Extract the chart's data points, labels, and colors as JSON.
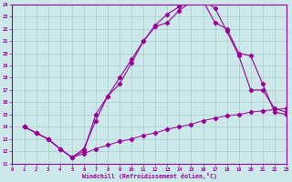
{
  "xlabel": "Windchill (Refroidissement éolien,°C)",
  "bg_color": "#cce8ea",
  "grid_color": "#aacccc",
  "line_color": "#990099",
  "xmin": 0,
  "xmax": 23,
  "ymin": 11,
  "ymax": 24,
  "curve1_x": [
    1,
    2,
    3,
    4,
    5,
    6,
    7,
    8,
    9,
    10,
    11,
    12,
    13,
    14,
    15,
    16,
    17,
    18,
    19,
    20,
    21,
    22,
    23
  ],
  "curve1_y": [
    14,
    13.5,
    13,
    12.2,
    11.5,
    12.2,
    14.5,
    16.5,
    18.0,
    19.5,
    21.0,
    22.2,
    22.5,
    23.5,
    24.2,
    24.3,
    23.7,
    21.8,
    19.8,
    17.0,
    17.0,
    15.5,
    15.2
  ],
  "curve2_x": [
    1,
    2,
    3,
    4,
    5,
    6,
    7,
    8,
    9,
    10,
    11,
    12,
    13,
    14,
    15,
    16,
    17,
    18,
    19,
    20,
    21,
    22,
    23
  ],
  "curve2_y": [
    14,
    13.5,
    13,
    12.2,
    11.5,
    12.0,
    15.0,
    16.5,
    17.5,
    19.2,
    21.0,
    22.3,
    23.2,
    23.8,
    24.3,
    24.3,
    22.5,
    22.0,
    20.0,
    19.8,
    17.5,
    15.2,
    15.0
  ],
  "curve3_x": [
    1,
    2,
    3,
    4,
    5,
    6,
    7,
    8,
    9,
    10,
    11,
    12,
    13,
    14,
    15,
    16,
    17,
    18,
    19,
    20,
    21,
    22,
    23
  ],
  "curve3_y": [
    14,
    13.5,
    13.0,
    12.2,
    11.5,
    11.8,
    12.2,
    12.5,
    12.8,
    13.0,
    13.3,
    13.5,
    13.8,
    14.0,
    14.2,
    14.5,
    14.7,
    14.9,
    15.0,
    15.2,
    15.3,
    15.4,
    15.5
  ]
}
